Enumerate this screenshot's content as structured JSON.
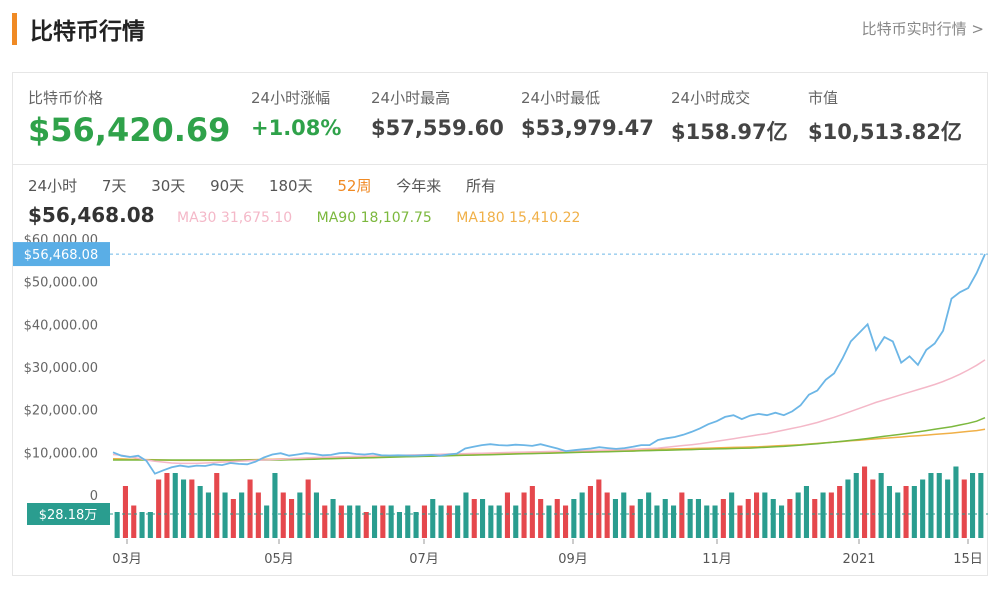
{
  "header": {
    "title": "比特币行情",
    "link": "比特币实时行情 >"
  },
  "stats": [
    {
      "label": "比特币价格",
      "value": "$56,420.69"
    },
    {
      "label": "24小时涨幅",
      "value": "+1.08%"
    },
    {
      "label": "24小时最高",
      "value": "$57,559.60"
    },
    {
      "label": "24小时最低",
      "value": "$53,979.47"
    },
    {
      "label": "24小时成交",
      "value": "$158.97亿"
    },
    {
      "label": "市值",
      "value": "$10,513.82亿"
    }
  ],
  "ranges": [
    "24小时",
    "7天",
    "30天",
    "90天",
    "180天",
    "52周",
    "今年来",
    "所有"
  ],
  "active_range": "52周",
  "current": {
    "price": "$56,468.08",
    "ma30_label": "MA30",
    "ma30": "31,675.10",
    "ma90_label": "MA90",
    "ma90": "18,107.75",
    "ma180_label": "MA180",
    "ma180": "15,410.22"
  },
  "colors": {
    "price": "#6cb6e6",
    "ma30": "#f4b8c8",
    "ma90": "#7cb83e",
    "ma180": "#f0b048",
    "up": "#e5484d",
    "down": "#2a9d8f",
    "accent": "#f08a24"
  },
  "chart_data": {
    "type": "line",
    "title": "",
    "ylim": [
      0,
      60000
    ],
    "y_ticks": [
      "$60,000.00",
      "$50,000.00",
      "$40,000.00",
      "$30,000.00",
      "$20,000.00",
      "$10,000.00",
      "0"
    ],
    "x_ticks": [
      "03月",
      "05月",
      "07月",
      "09月",
      "11月",
      "2021",
      "15日"
    ],
    "current_price_tag": "$56,468.08",
    "current_price_value": 56468,
    "volume_tag": "$28.18万",
    "series": [
      {
        "name": "Price",
        "values": [
          10000,
          9200,
          8900,
          9200,
          8000,
          5000,
          5800,
          6500,
          6900,
          6600,
          6900,
          6800,
          7200,
          7000,
          7500,
          7300,
          7200,
          7800,
          8800,
          9500,
          9800,
          9200,
          9500,
          9800,
          9600,
          9300,
          9400,
          9800,
          9900,
          9600,
          9500,
          9700,
          9300,
          9250,
          9300,
          9250,
          9200,
          9300,
          9400,
          9200,
          9500,
          9700,
          10900,
          11300,
          11700,
          11900,
          11700,
          11600,
          11800,
          11700,
          11500,
          11900,
          11400,
          10900,
          10300,
          10500,
          10700,
          10900,
          11200,
          11000,
          10800,
          11000,
          11300,
          11700,
          11700,
          12900,
          13300,
          13600,
          14100,
          14800,
          15600,
          16600,
          17300,
          18300,
          18700,
          17800,
          18600,
          19000,
          18700,
          19300,
          18700,
          19600,
          21000,
          23500,
          24500,
          27000,
          28500,
          32000,
          36000,
          38000,
          40000,
          34000,
          37000,
          36000,
          31000,
          32500,
          30500,
          34000,
          35500,
          38500,
          46000,
          47500,
          48500,
          52000,
          56468
        ]
      },
      {
        "name": "MA30",
        "values": [
          9500,
          9300,
          9000,
          8600,
          8200,
          7900,
          7700,
          7500,
          7400,
          7400,
          7400,
          7500,
          7600,
          7700,
          7800,
          7900,
          8000,
          8100,
          8200,
          8300,
          8400,
          8500,
          8600,
          8700,
          8800,
          8850,
          8900,
          8950,
          9000,
          9050,
          9100,
          9150,
          9200,
          9250,
          9300,
          9350,
          9400,
          9450,
          9500,
          9550,
          9600,
          9650,
          9700,
          9750,
          9800,
          9850,
          9900,
          9950,
          10000,
          10050,
          10100,
          10150,
          10200,
          10250,
          10300,
          10350,
          10400,
          10450,
          10500,
          10550,
          10600,
          10650,
          10700,
          10800,
          10900,
          11000,
          11200,
          11400,
          11600,
          11800,
          12000,
          12300,
          12600,
          12900,
          13200,
          13500,
          13800,
          14100,
          14400,
          14800,
          15200,
          15600,
          16000,
          16500,
          17000,
          17600,
          18200,
          18900,
          19600,
          20300,
          21000,
          21700,
          22300,
          22900,
          23500,
          24100,
          24700,
          25300,
          25900,
          26600,
          27400,
          28300,
          29300,
          30400,
          31675
        ]
      },
      {
        "name": "MA90",
        "values": [
          8200,
          8200,
          8200,
          8200,
          8200,
          8200,
          8200,
          8200,
          8200,
          8200,
          8200,
          8200,
          8200,
          8200,
          8200,
          8200,
          8200,
          8200,
          8200,
          8200,
          8200,
          8250,
          8300,
          8350,
          8400,
          8450,
          8500,
          8550,
          8600,
          8650,
          8700,
          8750,
          8800,
          8850,
          8900,
          8950,
          9000,
          9050,
          9100,
          9150,
          9200,
          9250,
          9300,
          9350,
          9400,
          9450,
          9500,
          9550,
          9600,
          9650,
          9700,
          9750,
          9800,
          9850,
          9900,
          9950,
          10000,
          10050,
          10100,
          10150,
          10200,
          10250,
          10300,
          10350,
          10400,
          10450,
          10500,
          10550,
          10600,
          10650,
          10700,
          10750,
          10800,
          10850,
          10900,
          10950,
          11000,
          11100,
          11200,
          11300,
          11400,
          11550,
          11700,
          11850,
          12000,
          12200,
          12400,
          12600,
          12800,
          13000,
          13250,
          13500,
          13750,
          14000,
          14250,
          14500,
          14800,
          15100,
          15400,
          15700,
          16000,
          16400,
          16800,
          17300,
          18108
        ]
      },
      {
        "name": "MA180",
        "values": [
          8500,
          8450,
          8400,
          8350,
          8300,
          8250,
          8200,
          8150,
          8100,
          8100,
          8100,
          8100,
          8100,
          8100,
          8150,
          8200,
          8250,
          8300,
          8350,
          8400,
          8450,
          8500,
          8550,
          8600,
          8650,
          8700,
          8750,
          8800,
          8850,
          8900,
          8950,
          9000,
          9050,
          9100,
          9150,
          9200,
          9250,
          9300,
          9350,
          9400,
          9450,
          9500,
          9550,
          9600,
          9650,
          9700,
          9750,
          9800,
          9850,
          9900,
          9950,
          10000,
          10050,
          10100,
          10150,
          10200,
          10250,
          10300,
          10350,
          10400,
          10450,
          10500,
          10550,
          10600,
          10650,
          10700,
          10750,
          10800,
          10850,
          10900,
          10950,
          11000,
          11050,
          11100,
          11150,
          11200,
          11250,
          11300,
          11400,
          11500,
          11600,
          11700,
          11800,
          11950,
          12100,
          12250,
          12400,
          12550,
          12700,
          12850,
          13000,
          13150,
          13300,
          13450,
          13600,
          13750,
          13900,
          14050,
          14200,
          14350,
          14500,
          14700,
          14900,
          15100,
          15410
        ]
      },
      {
        "name": "Volume",
        "values": [
          0.4,
          0.8,
          0.5,
          0.4,
          0.4,
          0.9,
          1.0,
          1.0,
          0.9,
          0.9,
          0.8,
          0.7,
          1.0,
          0.7,
          0.6,
          0.7,
          0.9,
          0.7,
          0.5,
          1.0,
          0.7,
          0.6,
          0.7,
          0.9,
          0.7,
          0.5,
          0.6,
          0.5,
          0.5,
          0.5,
          0.4,
          0.5,
          0.5,
          0.5,
          0.4,
          0.5,
          0.4,
          0.5,
          0.6,
          0.5,
          0.5,
          0.5,
          0.7,
          0.6,
          0.6,
          0.5,
          0.5,
          0.7,
          0.5,
          0.7,
          0.8,
          0.6,
          0.5,
          0.6,
          0.5,
          0.6,
          0.7,
          0.8,
          0.9,
          0.7,
          0.6,
          0.7,
          0.5,
          0.6,
          0.7,
          0.5,
          0.6,
          0.5,
          0.7,
          0.6,
          0.6,
          0.5,
          0.5,
          0.6,
          0.7,
          0.5,
          0.6,
          0.7,
          0.7,
          0.6,
          0.5,
          0.6,
          0.7,
          0.8,
          0.6,
          0.7,
          0.7,
          0.8,
          0.9,
          1.0,
          1.1,
          0.9,
          1.0,
          0.8,
          0.7,
          0.8,
          0.8,
          0.9,
          1.0,
          1.0,
          0.9,
          1.1,
          0.9,
          1.0,
          1.0
        ]
      },
      {
        "name": "VolumeDir",
        "values": [
          0,
          1,
          1,
          0,
          0,
          1,
          1,
          0,
          0,
          1,
          0,
          0,
          1,
          0,
          1,
          0,
          1,
          1,
          0,
          0,
          1,
          1,
          0,
          1,
          0,
          1,
          0,
          1,
          0,
          0,
          1,
          0,
          1,
          0,
          0,
          0,
          0,
          1,
          0,
          0,
          1,
          0,
          0,
          1,
          0,
          0,
          0,
          1,
          0,
          1,
          1,
          1,
          0,
          1,
          1,
          0,
          0,
          1,
          1,
          1,
          0,
          0,
          1,
          0,
          0,
          0,
          0,
          0,
          1,
          0,
          0,
          0,
          0,
          1,
          0,
          1,
          1,
          1,
          0,
          0,
          0,
          1,
          0,
          0,
          1,
          0,
          1,
          1,
          0,
          0,
          1,
          1,
          0,
          0,
          0,
          1,
          0,
          0,
          0,
          0,
          0,
          0,
          1,
          0,
          0
        ]
      }
    ]
  }
}
